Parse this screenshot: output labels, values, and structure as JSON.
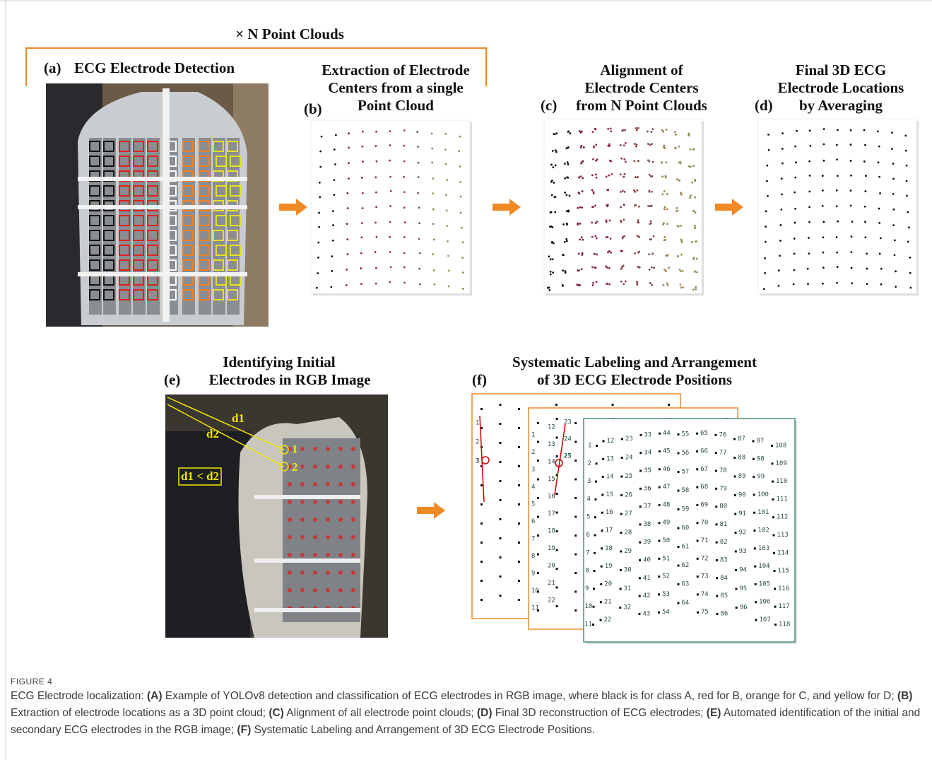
{
  "header": {
    "title": "× N Point Clouds"
  },
  "panels": {
    "a": {
      "label": "(a)",
      "title": "ECG Electrode Detection"
    },
    "b": {
      "label": "(b)",
      "title_lines": [
        "Extraction of Electrode",
        "Centers from a single",
        "Point Cloud"
      ]
    },
    "c": {
      "label": "(c)",
      "title_lines": [
        "Alignment of",
        "Electrode Centers",
        "from N Point Clouds"
      ]
    },
    "d": {
      "label": "(d)",
      "title_lines": [
        "Final 3D ECG",
        "Electrode Locations",
        "by Averaging"
      ]
    },
    "e": {
      "label": "(e)",
      "title_lines": [
        "Identifying Initial",
        "Electrodes in RGB Image"
      ],
      "annotations": {
        "d1": "d1",
        "d2": "d2",
        "inequality": "d1 < d2",
        "first": "1",
        "second": "2"
      }
    },
    "f": {
      "label": "(f)",
      "title_lines": [
        "Systematic Labeling and Arrangement",
        "of 3D ECG Electrode Positions"
      ],
      "sheet1": [
        "1",
        "2",
        "3"
      ],
      "sheet2": [
        [
          "1",
          "2",
          "3",
          "4",
          "5",
          "6",
          "7",
          "8",
          "9",
          "10",
          "11"
        ],
        [
          "12",
          "13",
          "14",
          "15",
          "16",
          "17",
          "18",
          "19",
          "20",
          "21",
          "22"
        ],
        [
          "23",
          "24",
          "25"
        ]
      ],
      "sheet3": [
        [
          "1",
          "2",
          "3",
          "4",
          "5",
          "6",
          "7",
          "8",
          "9",
          "10",
          "11"
        ],
        [
          "12",
          "13",
          "14",
          "15",
          "16",
          "17",
          "18",
          "19",
          "20",
          "21",
          "22"
        ],
        [
          "23",
          "24",
          "25",
          "26",
          "27",
          "28",
          "29",
          "30",
          "31",
          "32"
        ],
        [
          "33",
          "34",
          "35",
          "36",
          "37",
          "38",
          "39",
          "40",
          "41",
          "42",
          "43"
        ],
        [
          "44",
          "45",
          "46",
          "47",
          "48",
          "49",
          "50",
          "51",
          "52",
          "53",
          "54"
        ],
        [
          "55",
          "56",
          "57",
          "58",
          "59",
          "60",
          "61",
          "62",
          "63",
          "64"
        ],
        [
          "65",
          "66",
          "67",
          "68",
          "69",
          "70",
          "71",
          "72",
          "73",
          "74",
          "75"
        ],
        [
          "76",
          "77",
          "78",
          "79",
          "80",
          "81",
          "82",
          "83",
          "84",
          "85",
          "86"
        ],
        [
          "87",
          "88",
          "89",
          "90",
          "91",
          "92",
          "93",
          "94",
          "95",
          "96"
        ],
        [
          "97",
          "98",
          "99",
          "100",
          "101",
          "102",
          "103",
          "104",
          "105",
          "106",
          "107"
        ],
        [
          "108",
          "109",
          "110",
          "111",
          "112",
          "113",
          "114",
          "115",
          "116",
          "117",
          "118"
        ]
      ]
    }
  },
  "caption": {
    "figure": "FIGURE 4",
    "parts": [
      {
        "text": "ECG Electrode localization: ",
        "bold": false
      },
      {
        "text": "(A)",
        "bold": true
      },
      {
        "text": " Example of YOLOv8 detection and classification of ECG electrodes in RGB image, where black is for class A, red for B, orange for C, and yellow for D; ",
        "bold": false
      },
      {
        "text": "(B)",
        "bold": true
      },
      {
        "text": " Extraction of electrode locations as a 3D point cloud; ",
        "bold": false
      },
      {
        "text": "(C)",
        "bold": true
      },
      {
        "text": " Alignment of all electrode point clouds; ",
        "bold": false
      },
      {
        "text": "(D)",
        "bold": true
      },
      {
        "text": " Final 3D reconstruction of ECG electrodes; ",
        "bold": false
      },
      {
        "text": "(E)",
        "bold": true
      },
      {
        "text": " Automated identification of the initial and secondary ECG electrodes in the RGB image; ",
        "bold": false
      },
      {
        "text": "(F)",
        "bold": true
      },
      {
        "text": " Systematic Labeling and Arrangement of 3D ECG Electrode Positions.",
        "bold": false
      }
    ]
  }
}
